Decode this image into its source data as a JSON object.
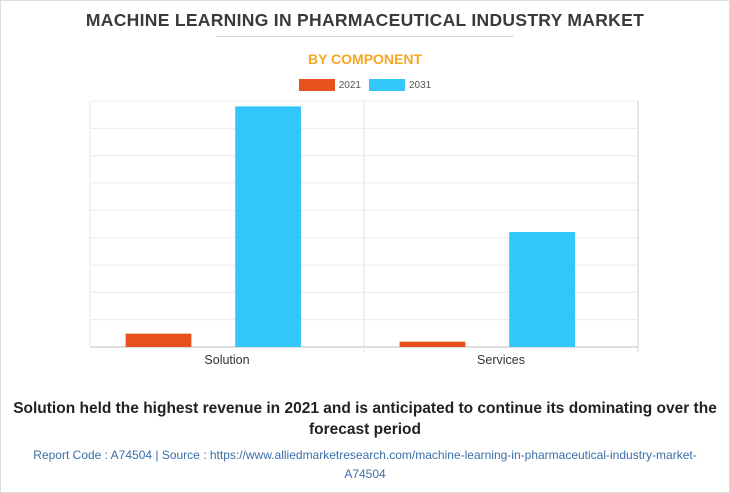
{
  "header": {
    "title": "MACHINE LEARNING IN PHARMACEUTICAL INDUSTRY MARKET",
    "subtitle": "BY COMPONENT"
  },
  "colors": {
    "series_2021": "#e8501c",
    "series_2031": "#33c6fa",
    "title": "#3a3a3a",
    "subtitle": "#f5a623",
    "source": "#3a6fa8"
  },
  "chart_data": {
    "type": "bar",
    "categories": [
      "Solution",
      "Services"
    ],
    "series": [
      {
        "name": "2021",
        "values": [
          5,
          2
        ]
      },
      {
        "name": "2031",
        "values": [
          90,
          43
        ]
      }
    ],
    "ylim": [
      0,
      92
    ],
    "grid": true,
    "legend_position": "top-center",
    "y_ticks_labeled": false
  },
  "footer": {
    "caption": "Solution held the highest revenue in 2021 and is anticipated to continue its dominating over the forecast period",
    "source": "Report Code : A74504  |  Source : https://www.alliedmarketresearch.com/machine-learning-in-pharmaceutical-industry-market-A74504"
  }
}
